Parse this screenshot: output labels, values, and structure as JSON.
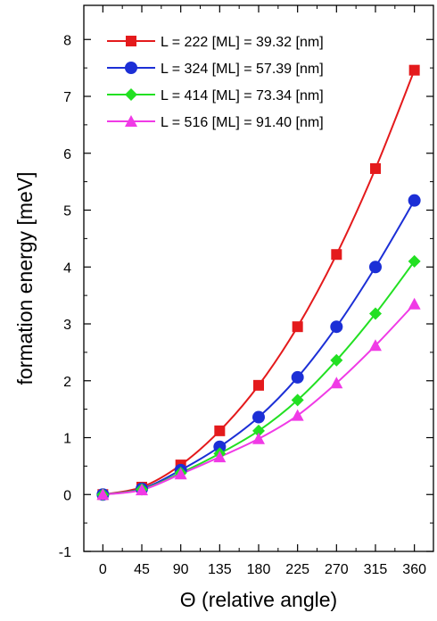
{
  "chart_data": {
    "type": "line",
    "title": "",
    "xlabel": "Θ (relative angle)",
    "ylabel": "formation energy  [meV]",
    "xlim": [
      -22,
      382
    ],
    "ylim": [
      -1,
      8.6
    ],
    "x_ticks": [
      0,
      45,
      90,
      135,
      180,
      225,
      270,
      315,
      360
    ],
    "y_ticks": [
      -1,
      0,
      1,
      2,
      3,
      4,
      5,
      6,
      7,
      8
    ],
    "grid": false,
    "legend_position": "top-left",
    "series": [
      {
        "name": "L = 222 [ML] = 39.32 [nm]",
        "color": "#e41a1c",
        "marker": "square",
        "x": [
          0,
          45,
          90,
          135,
          180,
          225,
          270,
          315,
          360
        ],
        "y": [
          0.0,
          0.13,
          0.52,
          1.12,
          1.92,
          2.95,
          4.22,
          5.73,
          7.46
        ]
      },
      {
        "name": "L = 324 [ML] = 57.39 [nm]",
        "color": "#1c2fd6",
        "marker": "circle",
        "x": [
          0,
          45,
          90,
          135,
          180,
          225,
          270,
          315,
          360
        ],
        "y": [
          0.0,
          0.1,
          0.43,
          0.84,
          1.36,
          2.06,
          2.95,
          4.0,
          5.17
        ]
      },
      {
        "name": "L = 414 [ML] = 73.34 [nm]",
        "color": "#22e022",
        "marker": "diamond",
        "x": [
          0,
          45,
          90,
          135,
          180,
          225,
          270,
          315,
          360
        ],
        "y": [
          0.0,
          0.09,
          0.38,
          0.72,
          1.12,
          1.66,
          2.36,
          3.18,
          4.1
        ]
      },
      {
        "name": "L = 516 [ML] = 91.40 [nm]",
        "color": "#f03ae6",
        "marker": "triangle",
        "x": [
          0,
          45,
          90,
          135,
          180,
          225,
          270,
          315,
          360
        ],
        "y": [
          0.0,
          0.08,
          0.36,
          0.66,
          0.98,
          1.39,
          1.96,
          2.62,
          3.35
        ]
      }
    ]
  }
}
